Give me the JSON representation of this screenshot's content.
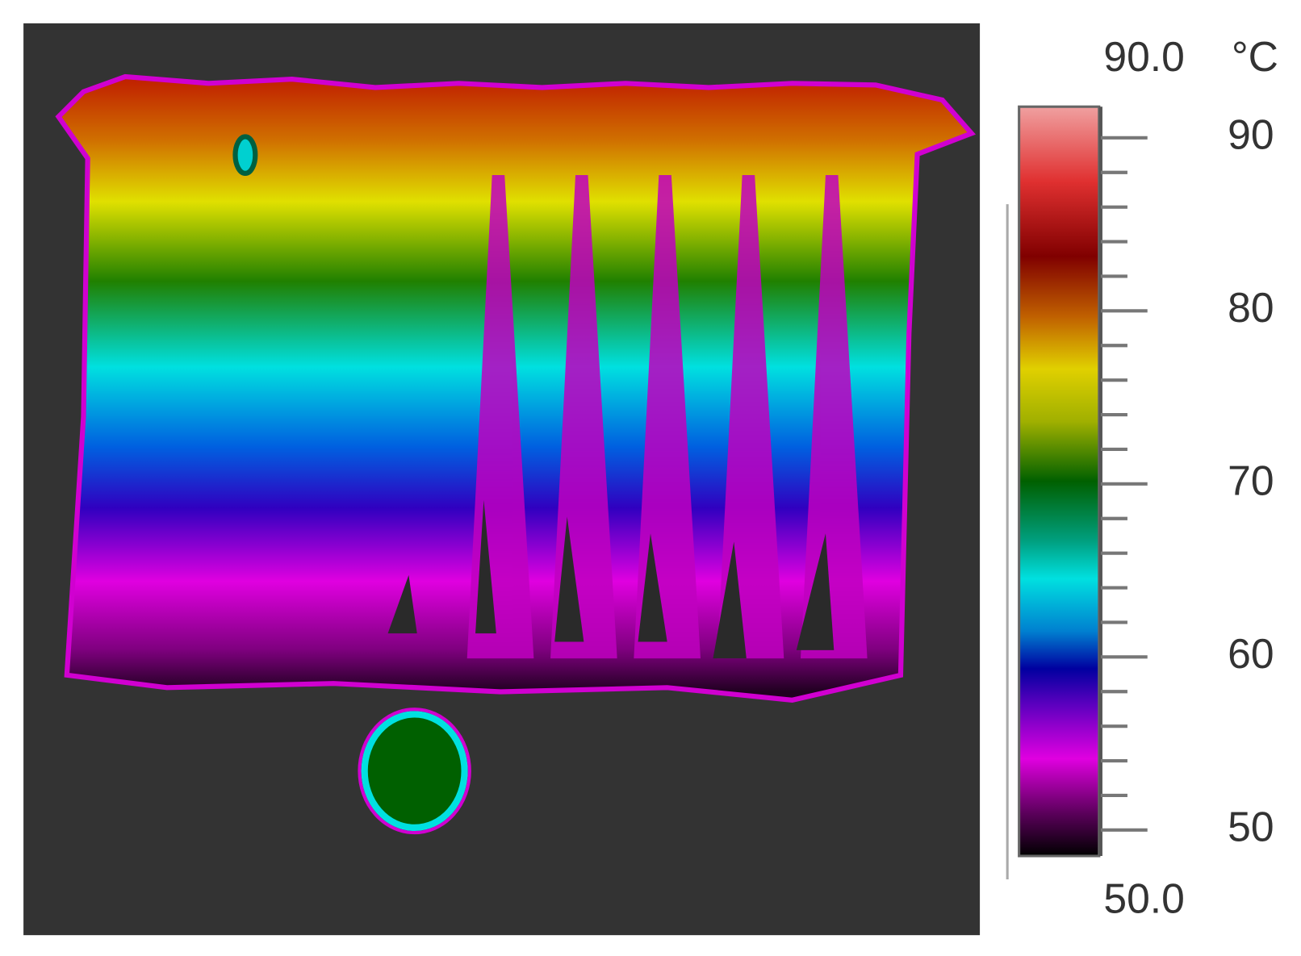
{
  "colorbar": {
    "max_label": "90.0",
    "min_label": "50.0",
    "unit": "°C",
    "lim": [
      48.5,
      91.8
    ],
    "ticks": [
      50,
      60,
      70,
      80,
      90
    ],
    "minor_ticks": [
      52,
      54,
      56,
      58,
      62,
      64,
      66,
      68,
      72,
      74,
      76,
      78,
      82,
      84,
      86,
      88
    ]
  }
}
